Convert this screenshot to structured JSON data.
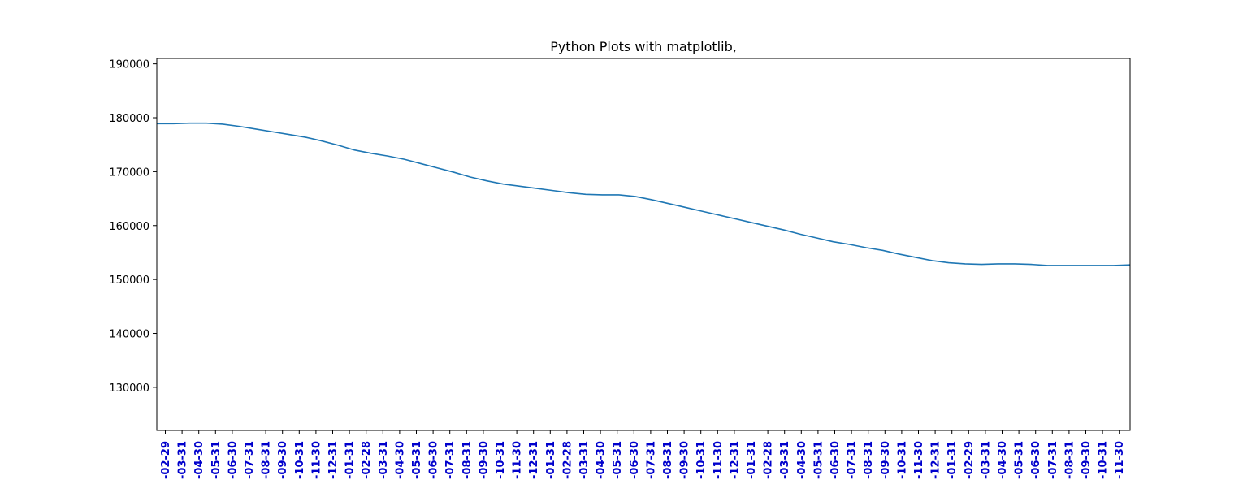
{
  "chart_data": {
    "type": "line",
    "title": "Python Plots with matplotlib,",
    "xlabel": "",
    "ylabel": "",
    "ylim": [
      122000,
      191000
    ],
    "yticks": [
      130000,
      140000,
      150000,
      160000,
      170000,
      180000,
      190000
    ],
    "ytick_labels": [
      "130000",
      "140000",
      "150000",
      "160000",
      "170000",
      "180000",
      "190000"
    ],
    "x_tick_color": "#0000cc",
    "line_color": "#1f77b4",
    "grid": false,
    "legend": "none",
    "x_tick_labels": [
      "-02-29",
      "-03-31",
      "-04-30",
      "-05-31",
      "-06-30",
      "-07-31",
      "-08-31",
      "-09-30",
      "-10-31",
      "-11-30",
      "-12-31",
      "-01-31",
      "-02-28",
      "-03-31",
      "-04-30",
      "-05-31",
      "-06-30",
      "-07-31",
      "-08-31",
      "-09-30",
      "-10-31",
      "-11-30",
      "-12-31",
      "-01-31",
      "-02-28",
      "-03-31",
      "-04-30",
      "-05-31",
      "-06-30",
      "-07-31",
      "-08-31",
      "-09-30",
      "-10-31",
      "-11-30",
      "-12-31",
      "-01-31",
      "-02-28",
      "-03-31",
      "-04-30",
      "-05-31",
      "-06-30",
      "-07-31",
      "-08-31",
      "-09-30",
      "-10-31",
      "-11-30",
      "-12-31",
      "-01-31",
      "-02-29",
      "-03-31",
      "-04-30",
      "-05-31",
      "-06-30",
      "-07-31",
      "-08-31",
      "-09-30",
      "-10-31",
      "-11-30"
    ],
    "series": [
      {
        "values": [
          178900,
          178900,
          179000,
          179000,
          178800,
          178400,
          177900,
          177400,
          176900,
          176400,
          175700,
          174900,
          174000,
          173400,
          172900,
          172300,
          171500,
          170700,
          169900,
          169000,
          168300,
          167700,
          167300,
          166900,
          166500,
          166100,
          165800,
          165700,
          165700,
          165400,
          164800,
          164100,
          163400,
          162700,
          162000,
          161300,
          160600,
          159900,
          159200,
          158400,
          157700,
          157000,
          156500,
          155900,
          155400,
          154700,
          154100,
          153500,
          153100,
          152900,
          152800,
          152900,
          152900,
          152800,
          152600,
          152600,
          152600,
          152600,
          152600,
          152700
        ]
      }
    ]
  }
}
